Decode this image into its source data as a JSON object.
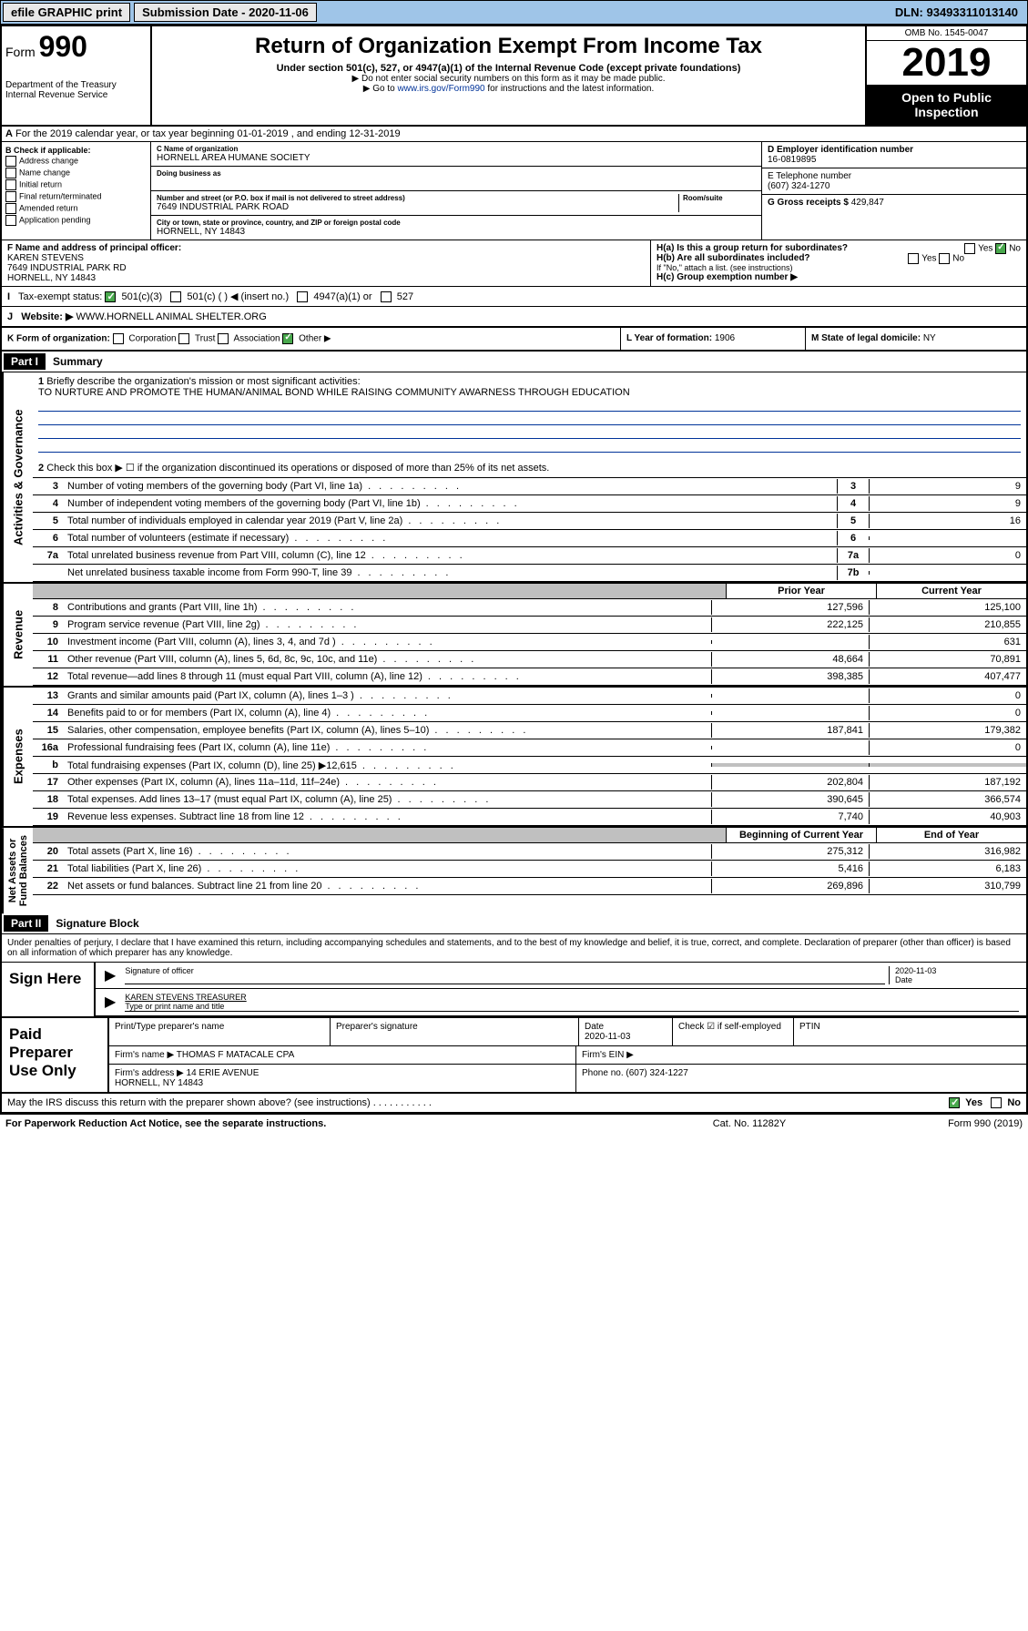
{
  "top": {
    "efile": "efile GRAPHIC print",
    "sub_label": "Submission Date - 2020-11-06",
    "dln": "DLN: 93493311013140"
  },
  "header": {
    "form_prefix": "Form",
    "form_num": "990",
    "title": "Return of Organization Exempt From Income Tax",
    "subtitle": "Under section 501(c), 527, or 4947(a)(1) of the Internal Revenue Code (except private foundations)",
    "note1": "▶ Do not enter social security numbers on this form as it may be made public.",
    "note2_pre": "▶ Go to ",
    "note2_link": "www.irs.gov/Form990",
    "note2_post": " for instructions and the latest information.",
    "dept": "Department of the Treasury\nInternal Revenue Service",
    "omb": "OMB No. 1545-0047",
    "year": "2019",
    "public": "Open to Public\nInspection"
  },
  "period": "For the 2019 calendar year, or tax year beginning 01-01-2019  , and ending 12-31-2019",
  "boxB": {
    "label": "B Check if applicable:",
    "opts": [
      "Address change",
      "Name change",
      "Initial return",
      "Final return/terminated",
      "Amended return",
      "Application pending"
    ]
  },
  "boxC": {
    "name_lbl": "C Name of organization",
    "name": "HORNELL AREA HUMANE SOCIETY",
    "dba_lbl": "Doing business as",
    "addr_lbl": "Number and street (or P.O. box if mail is not delivered to street address)",
    "room_lbl": "Room/suite",
    "addr": "7649 INDUSTRIAL PARK ROAD",
    "city_lbl": "City or town, state or province, country, and ZIP or foreign postal code",
    "city": "HORNELL, NY  14843"
  },
  "boxD": {
    "lbl": "D Employer identification number",
    "val": "16-0819895"
  },
  "boxE": {
    "lbl": "E Telephone number",
    "val": "(607) 324-1270"
  },
  "boxG": {
    "lbl": "G Gross receipts $",
    "val": "429,847"
  },
  "boxF": {
    "lbl": "F Name and address of principal officer:",
    "name": "KAREN STEVENS",
    "addr": "7649 INDUSTRIAL PARK RD\nHORNELL, NY  14843"
  },
  "boxH": {
    "a": "H(a)  Is this a group return for subordinates?",
    "b": "H(b)  Are all subordinates included?",
    "c": "H(c)  Group exemption number ▶",
    "yes": "Yes",
    "no": "No",
    "note": "If \"No,\" attach a list. (see instructions)"
  },
  "taxI": {
    "lbl": "Tax-exempt status:",
    "opts": [
      "501(c)(3)",
      "501(c) (  ) ◀ (insert no.)",
      "4947(a)(1) or",
      "527"
    ]
  },
  "webJ": {
    "lbl": "Website: ▶",
    "val": "WWW.HORNELL ANIMAL SHELTER.ORG"
  },
  "boxK": {
    "lbl": "K Form of organization:",
    "opts": [
      "Corporation",
      "Trust",
      "Association",
      "Other ▶"
    ]
  },
  "boxL": {
    "lbl": "L Year of formation:",
    "val": "1906"
  },
  "boxM": {
    "lbl": "M State of legal domicile:",
    "val": "NY"
  },
  "part1": {
    "hdr": "Part I",
    "title": "Summary",
    "line1": "Briefly describe the organization's mission or most significant activities:",
    "mission": "TO NURTURE AND PROMOTE THE HUMAN/ANIMAL BOND WHILE RAISING COMMUNITY AWARNESS THROUGH EDUCATION",
    "line2": "Check this box ▶ ☐  if the organization discontinued its operations or disposed of more than 25% of its net assets.",
    "rows_gov": [
      {
        "n": "3",
        "d": "Number of voting members of the governing body (Part VI, line 1a)",
        "b": "3",
        "v": "9"
      },
      {
        "n": "4",
        "d": "Number of independent voting members of the governing body (Part VI, line 1b)",
        "b": "4",
        "v": "9"
      },
      {
        "n": "5",
        "d": "Total number of individuals employed in calendar year 2019 (Part V, line 2a)",
        "b": "5",
        "v": "16"
      },
      {
        "n": "6",
        "d": "Total number of volunteers (estimate if necessary)",
        "b": "6",
        "v": ""
      },
      {
        "n": "7a",
        "d": "Total unrelated business revenue from Part VIII, column (C), line 12",
        "b": "7a",
        "v": "0"
      },
      {
        "n": "",
        "d": "Net unrelated business taxable income from Form 990-T, line 39",
        "b": "7b",
        "v": ""
      }
    ],
    "col_prior": "Prior Year",
    "col_curr": "Current Year",
    "rows_rev": [
      {
        "n": "8",
        "d": "Contributions and grants (Part VIII, line 1h)",
        "p": "127,596",
        "c": "125,100"
      },
      {
        "n": "9",
        "d": "Program service revenue (Part VIII, line 2g)",
        "p": "222,125",
        "c": "210,855"
      },
      {
        "n": "10",
        "d": "Investment income (Part VIII, column (A), lines 3, 4, and 7d )",
        "p": "",
        "c": "631"
      },
      {
        "n": "11",
        "d": "Other revenue (Part VIII, column (A), lines 5, 6d, 8c, 9c, 10c, and 11e)",
        "p": "48,664",
        "c": "70,891"
      },
      {
        "n": "12",
        "d": "Total revenue—add lines 8 through 11 (must equal Part VIII, column (A), line 12)",
        "p": "398,385",
        "c": "407,477"
      }
    ],
    "rows_exp": [
      {
        "n": "13",
        "d": "Grants and similar amounts paid (Part IX, column (A), lines 1–3 )",
        "p": "",
        "c": "0"
      },
      {
        "n": "14",
        "d": "Benefits paid to or for members (Part IX, column (A), line 4)",
        "p": "",
        "c": "0"
      },
      {
        "n": "15",
        "d": "Salaries, other compensation, employee benefits (Part IX, column (A), lines 5–10)",
        "p": "187,841",
        "c": "179,382"
      },
      {
        "n": "16a",
        "d": "Professional fundraising fees (Part IX, column (A), line 11e)",
        "p": "",
        "c": "0"
      },
      {
        "n": "b",
        "d": "Total fundraising expenses (Part IX, column (D), line 25) ▶12,615",
        "p": "",
        "c": "",
        "grey": true
      },
      {
        "n": "17",
        "d": "Other expenses (Part IX, column (A), lines 11a–11d, 11f–24e)",
        "p": "202,804",
        "c": "187,192"
      },
      {
        "n": "18",
        "d": "Total expenses. Add lines 13–17 (must equal Part IX, column (A), line 25)",
        "p": "390,645",
        "c": "366,574"
      },
      {
        "n": "19",
        "d": "Revenue less expenses. Subtract line 18 from line 12",
        "p": "7,740",
        "c": "40,903"
      }
    ],
    "col_beg": "Beginning of Current Year",
    "col_end": "End of Year",
    "rows_net": [
      {
        "n": "20",
        "d": "Total assets (Part X, line 16)",
        "p": "275,312",
        "c": "316,982"
      },
      {
        "n": "21",
        "d": "Total liabilities (Part X, line 26)",
        "p": "5,416",
        "c": "6,183"
      },
      {
        "n": "22",
        "d": "Net assets or fund balances. Subtract line 21 from line 20",
        "p": "269,896",
        "c": "310,799"
      }
    ],
    "side_gov": "Activities & Governance",
    "side_rev": "Revenue",
    "side_exp": "Expenses",
    "side_net": "Net Assets or\nFund Balances"
  },
  "part2": {
    "hdr": "Part II",
    "title": "Signature Block",
    "penalty": "Under penalties of perjury, I declare that I have examined this return, including accompanying schedules and statements, and to the best of my knowledge and belief, it is true, correct, and complete. Declaration of preparer (other than officer) is based on all information of which preparer has any knowledge.",
    "sign": "Sign Here",
    "sig_officer": "Signature of officer",
    "sig_date": "2020-11-03",
    "date_lbl": "Date",
    "officer_name": "KAREN STEVENS TREASURER",
    "type_lbl": "Type or print name and title",
    "paid": "Paid Preparer Use Only",
    "prep_name_lbl": "Print/Type preparer's name",
    "prep_sig_lbl": "Preparer's signature",
    "prep_date": "2020-11-03",
    "check_self": "Check ☑ if self-employed",
    "ptin": "PTIN",
    "firm_name_lbl": "Firm's name  ▶",
    "firm_name": "THOMAS F MATACALE CPA",
    "firm_ein": "Firm's EIN ▶",
    "firm_addr_lbl": "Firm's address ▶",
    "firm_addr": "14 ERIE AVENUE\nHORNELL, NY  14843",
    "firm_phone": "Phone no. (607) 324-1227",
    "discuss": "May the IRS discuss this return with the preparer shown above? (see instructions)",
    "yes": "Yes",
    "no": "No"
  },
  "footer": {
    "l": "For Paperwork Reduction Act Notice, see the separate instructions.",
    "m": "Cat. No. 11282Y",
    "r": "Form 990 (2019)"
  },
  "colors": {
    "blue": "#9FC5E8",
    "green": "#49A84D",
    "link": "#003399"
  }
}
